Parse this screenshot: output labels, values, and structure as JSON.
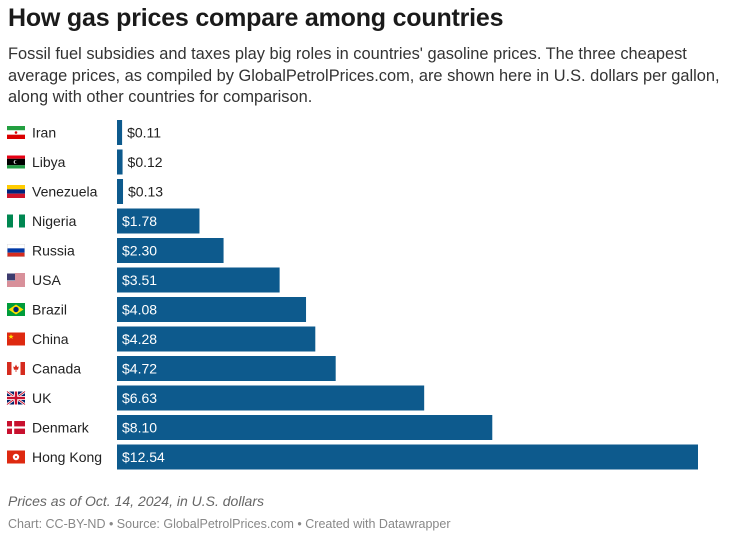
{
  "header": {
    "title": "How gas prices compare among countries",
    "subtitle": "Fossil fuel subsidies and taxes play big roles in countries' gasoline prices. The three cheapest average prices, as compiled by GlobalPetrolPrices.com, are shown here in U.S. dollars per gallon, along with other countries for comparison."
  },
  "notes": {
    "date_note": "Prices as of Oct. 14, 2024, in U.S. dollars",
    "footer": "Chart: CC-BY-ND • Source: GlobalPetrolPrices.com • Created with Datawrapper"
  },
  "colors": {
    "bar": "#0d5a8d",
    "label_inside": "#ffffff",
    "label_outside": "#222222"
  },
  "chart_data": {
    "type": "bar",
    "orientation": "horizontal",
    "categories": [
      "Iran",
      "Libya",
      "Venezuela",
      "Nigeria",
      "Russia",
      "USA",
      "Brazil",
      "China",
      "Canada",
      "UK",
      "Denmark",
      "Hong Kong"
    ],
    "flags": [
      "iran-flag",
      "libya-flag",
      "venezuela-flag",
      "nigeria-flag",
      "russia-flag",
      "usa-flag",
      "brazil-flag",
      "china-flag",
      "canada-flag",
      "uk-flag",
      "denmark-flag",
      "hong-kong-flag"
    ],
    "values": [
      0.11,
      0.12,
      0.13,
      1.78,
      2.3,
      3.51,
      4.08,
      4.28,
      4.72,
      6.63,
      8.1,
      12.54
    ],
    "value_labels": [
      "$0.11",
      "$0.12",
      "$0.13",
      "$1.78",
      "$2.30",
      "$3.51",
      "$4.08",
      "$4.28",
      "$4.72",
      "$6.63",
      "$8.10",
      "$12.54"
    ],
    "xlim": [
      0,
      12.54
    ],
    "grid": false,
    "legend": false
  }
}
